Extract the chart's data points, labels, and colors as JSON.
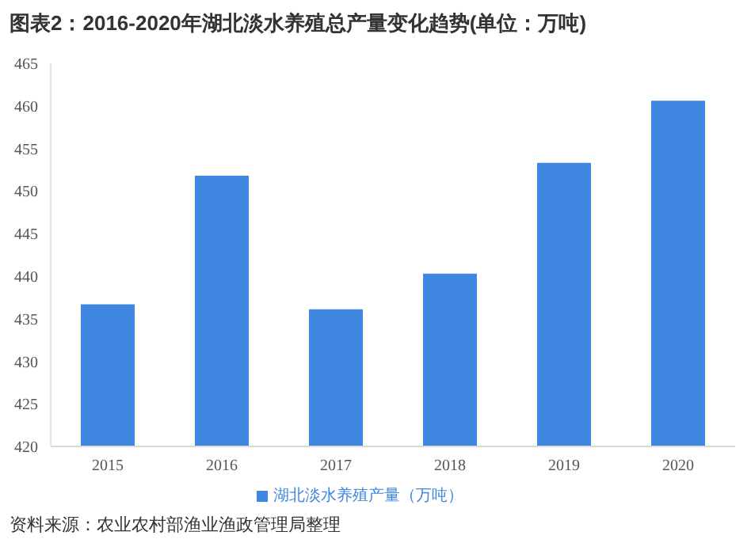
{
  "chart_data": {
    "type": "bar",
    "title": "图表2：2016-2020年湖北淡水养殖总产量变化趋势(单位：万吨)",
    "categories": [
      "2015",
      "2016",
      "2017",
      "2018",
      "2019",
      "2020"
    ],
    "series": [
      {
        "name": "湖北淡水养殖产量（万吨）",
        "color": "#3f86e0",
        "values": [
          436.7,
          451.8,
          436.1,
          440.3,
          453.3,
          460.6
        ]
      }
    ],
    "ylim": [
      420,
      465
    ],
    "yticks": [
      420,
      425,
      430,
      435,
      440,
      445,
      450,
      455,
      460,
      465
    ],
    "grid": false,
    "legend": "bottom",
    "annotations": [
      "资料来源：农业农村部渔业渔政管理局整理"
    ]
  }
}
